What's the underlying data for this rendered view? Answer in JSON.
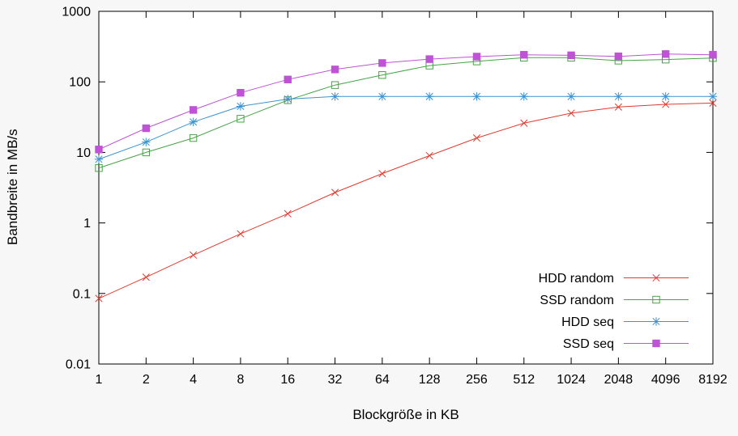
{
  "chart_data": {
    "type": "line",
    "title": "",
    "xlabel": "Blockgröße in KB",
    "ylabel": "Bandbreite in MB/s",
    "x_scale": "log2",
    "y_scale": "log10",
    "xlim": [
      1,
      8192
    ],
    "ylim": [
      0.01,
      1000
    ],
    "x_ticks": [
      1,
      2,
      4,
      8,
      16,
      32,
      64,
      128,
      256,
      512,
      1024,
      2048,
      4096,
      8192
    ],
    "y_ticks": [
      0.01,
      0.1,
      1,
      10,
      100,
      1000
    ],
    "grid": false,
    "legend_position": "bottom-right-inside",
    "x": [
      1,
      2,
      4,
      8,
      16,
      32,
      64,
      128,
      256,
      512,
      1024,
      2048,
      4096,
      8192
    ],
    "series": [
      {
        "name": "HDD random",
        "color": "#e23a2e",
        "marker": "cross",
        "values": [
          0.085,
          0.17,
          0.35,
          0.7,
          1.35,
          2.7,
          5,
          9,
          16,
          26,
          36,
          44,
          48,
          50
        ]
      },
      {
        "name": "SSD random",
        "color": "#47a447",
        "marker": "open-square",
        "values": [
          6,
          10,
          16,
          30,
          55,
          90,
          125,
          170,
          195,
          220,
          220,
          200,
          207,
          218
        ]
      },
      {
        "name": "HDD seq",
        "color": "#3d92cf",
        "marker": "asterisk",
        "values": [
          8,
          14,
          27,
          45,
          57,
          62,
          62,
          62,
          62,
          62,
          62,
          62,
          62,
          62
        ]
      },
      {
        "name": "SSD seq",
        "color": "#bf52d5",
        "marker": "filled-square",
        "values": [
          11,
          22,
          40,
          70,
          108,
          150,
          185,
          210,
          228,
          242,
          238,
          230,
          248,
          242
        ]
      }
    ],
    "axis_color": "#000000",
    "tick_font_size": 16,
    "legend_font_size": 16
  }
}
